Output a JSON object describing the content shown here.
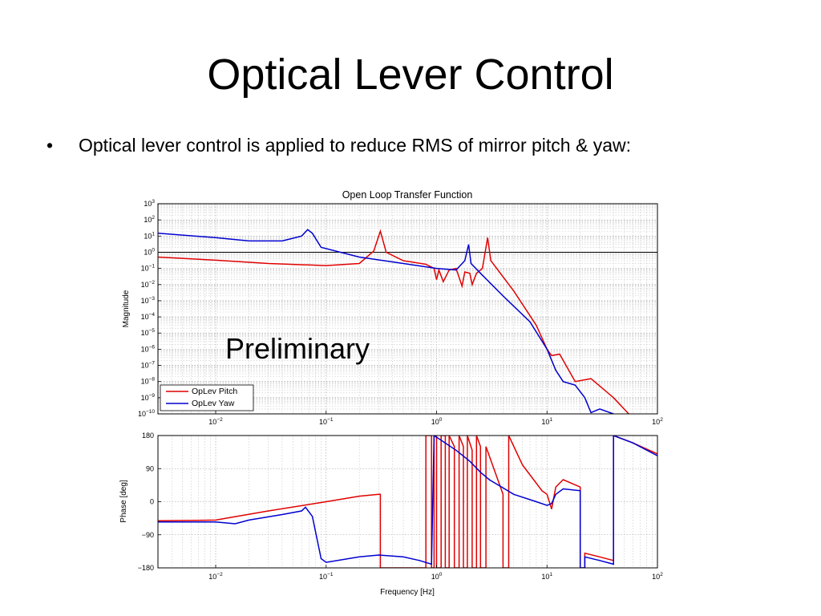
{
  "slide": {
    "title": "Optical Lever Control",
    "bullet": "Optical lever control is applied to reduce RMS of mirror pitch & yaw:",
    "watermark": "Preliminary"
  },
  "chart_data": [
    {
      "type": "line",
      "title": "Open Loop Transfer Function",
      "xlabel": "",
      "ylabel": "Magnitude",
      "xscale": "log",
      "yscale": "log",
      "xlim": [
        0.003,
        100
      ],
      "ylim": [
        1e-10,
        1000
      ],
      "grid": true,
      "legend_position": "bottom-left",
      "x_ticks": [
        {
          "v": 0.01,
          "b": "10",
          "e": "−2"
        },
        {
          "v": 0.1,
          "b": "10",
          "e": "−1"
        },
        {
          "v": 1,
          "b": "10",
          "e": "0"
        },
        {
          "v": 10,
          "b": "10",
          "e": "1"
        },
        {
          "v": 100,
          "b": "10",
          "e": "2"
        }
      ],
      "y_ticks": [
        {
          "v": 1000,
          "b": "10",
          "e": "3"
        },
        {
          "v": 100,
          "b": "10",
          "e": "2"
        },
        {
          "v": 10,
          "b": "10",
          "e": "1"
        },
        {
          "v": 1,
          "b": "10",
          "e": "0"
        },
        {
          "v": 0.1,
          "b": "10",
          "e": "−1"
        },
        {
          "v": 0.01,
          "b": "10",
          "e": "−2"
        },
        {
          "v": 0.001,
          "b": "10",
          "e": "−3"
        },
        {
          "v": 0.0001,
          "b": "10",
          "e": "−4"
        },
        {
          "v": 1e-05,
          "b": "10",
          "e": "−5"
        },
        {
          "v": 1e-06,
          "b": "10",
          "e": "−6"
        },
        {
          "v": 1e-07,
          "b": "10",
          "e": "−7"
        },
        {
          "v": 1e-08,
          "b": "10",
          "e": "−8"
        },
        {
          "v": 1e-09,
          "b": "10",
          "e": "−9"
        },
        {
          "v": 1e-10,
          "b": "10",
          "e": "−10"
        }
      ],
      "reference_line": 1,
      "series": [
        {
          "name": "OpLev Pitch",
          "color": "#e00000",
          "points": [
            [
              0.003,
              0.5
            ],
            [
              0.01,
              0.32
            ],
            [
              0.03,
              0.2
            ],
            [
              0.1,
              0.15
            ],
            [
              0.2,
              0.2
            ],
            [
              0.27,
              1.2
            ],
            [
              0.31,
              20
            ],
            [
              0.35,
              1.0
            ],
            [
              0.5,
              0.3
            ],
            [
              0.8,
              0.18
            ],
            [
              0.95,
              0.1
            ],
            [
              1.0,
              0.02
            ],
            [
              1.05,
              0.08
            ],
            [
              1.15,
              0.015
            ],
            [
              1.3,
              0.08
            ],
            [
              1.5,
              0.1
            ],
            [
              1.7,
              0.008
            ],
            [
              1.8,
              0.06
            ],
            [
              2.0,
              0.05
            ],
            [
              2.1,
              0.01
            ],
            [
              2.3,
              0.05
            ],
            [
              2.6,
              0.1
            ],
            [
              2.9,
              8
            ],
            [
              3.1,
              0.3
            ],
            [
              5,
              0.004
            ],
            [
              8,
              3e-05
            ],
            [
              10,
              1e-06
            ],
            [
              11,
              4e-07
            ],
            [
              13,
              5e-07
            ],
            [
              18,
              1e-08
            ],
            [
              25,
              1.5e-08
            ],
            [
              40,
              1e-09
            ],
            [
              55,
              1e-10
            ]
          ]
        },
        {
          "name": "OpLev Yaw",
          "color": "#0000d0",
          "points": [
            [
              0.003,
              15
            ],
            [
              0.01,
              8
            ],
            [
              0.02,
              5
            ],
            [
              0.04,
              5
            ],
            [
              0.06,
              10
            ],
            [
              0.068,
              25
            ],
            [
              0.075,
              15
            ],
            [
              0.09,
              2
            ],
            [
              0.2,
              0.5
            ],
            [
              0.5,
              0.2
            ],
            [
              1.0,
              0.1
            ],
            [
              1.5,
              0.08
            ],
            [
              1.8,
              0.3
            ],
            [
              1.95,
              3
            ],
            [
              2.05,
              0.2
            ],
            [
              2.5,
              0.05
            ],
            [
              4,
              0.002
            ],
            [
              7,
              5e-05
            ],
            [
              10,
              1e-06
            ],
            [
              12,
              5e-08
            ],
            [
              14,
              1e-08
            ],
            [
              18,
              6e-09
            ],
            [
              22,
              1e-09
            ],
            [
              25,
              1.2e-10
            ],
            [
              30,
              2e-10
            ],
            [
              40,
              1e-10
            ]
          ]
        }
      ]
    },
    {
      "type": "line",
      "title": "",
      "xlabel": "Frequency [Hz]",
      "ylabel": "Phase [deg]",
      "xscale": "log",
      "xlim": [
        0.003,
        100
      ],
      "ylim": [
        -180,
        180
      ],
      "grid": true,
      "x_ticks": [
        {
          "v": 0.01,
          "b": "10",
          "e": "−2"
        },
        {
          "v": 0.1,
          "b": "10",
          "e": "−1"
        },
        {
          "v": 1,
          "b": "10",
          "e": "0"
        },
        {
          "v": 10,
          "b": "10",
          "e": "1"
        },
        {
          "v": 100,
          "b": "10",
          "e": "2"
        }
      ],
      "y_ticks": [
        {
          "v": 180,
          "t": "180"
        },
        {
          "v": 90,
          "t": "90"
        },
        {
          "v": 0,
          "t": "0"
        },
        {
          "v": -90,
          "t": "−90"
        },
        {
          "v": -180,
          "t": "−180"
        }
      ],
      "series": [
        {
          "name": "OpLev Pitch",
          "color": "#e00000",
          "points": [
            [
              0.003,
              -52
            ],
            [
              0.01,
              -50
            ],
            [
              0.03,
              -25
            ],
            [
              0.1,
              0
            ],
            [
              0.2,
              15
            ],
            [
              0.3,
              20
            ],
            [
              0.31,
              20
            ],
            [
              0.31,
              -180
            ],
            [
              0.8,
              -180
            ],
            [
              0.8,
              180
            ],
            [
              0.9,
              180
            ],
            [
              0.9,
              -180
            ],
            [
              0.95,
              -180
            ],
            [
              0.95,
              180
            ],
            [
              1.0,
              180
            ],
            [
              1.0,
              -180
            ],
            [
              1.1,
              -180
            ],
            [
              1.1,
              180
            ],
            [
              1.2,
              180
            ],
            [
              1.2,
              -180
            ],
            [
              1.3,
              -180
            ],
            [
              1.3,
              180
            ],
            [
              1.45,
              150
            ],
            [
              1.45,
              -180
            ],
            [
              1.6,
              -180
            ],
            [
              1.6,
              180
            ],
            [
              1.75,
              150
            ],
            [
              1.75,
              -180
            ],
            [
              1.9,
              -180
            ],
            [
              1.9,
              180
            ],
            [
              2.1,
              140
            ],
            [
              2.1,
              -180
            ],
            [
              2.3,
              -180
            ],
            [
              2.3,
              180
            ],
            [
              2.5,
              150
            ],
            [
              2.5,
              -180
            ],
            [
              2.8,
              -180
            ],
            [
              2.8,
              150
            ],
            [
              4,
              20
            ],
            [
              4,
              -180
            ],
            [
              4.5,
              -180
            ],
            [
              4.5,
              180
            ],
            [
              6,
              100
            ],
            [
              9,
              30
            ],
            [
              10,
              20
            ],
            [
              11,
              -20
            ],
            [
              12,
              40
            ],
            [
              14,
              60
            ],
            [
              20,
              40
            ],
            [
              20,
              -180
            ],
            [
              22,
              -180
            ],
            [
              22,
              -140
            ],
            [
              30,
              -150
            ],
            [
              40,
              -160
            ],
            [
              40,
              180
            ],
            [
              60,
              160
            ],
            [
              100,
              130
            ]
          ]
        },
        {
          "name": "OpLev Yaw",
          "color": "#0000d0",
          "points": [
            [
              0.003,
              -55
            ],
            [
              0.01,
              -55
            ],
            [
              0.015,
              -60
            ],
            [
              0.02,
              -50
            ],
            [
              0.04,
              -35
            ],
            [
              0.06,
              -25
            ],
            [
              0.065,
              -15
            ],
            [
              0.075,
              -40
            ],
            [
              0.09,
              -155
            ],
            [
              0.1,
              -165
            ],
            [
              0.2,
              -150
            ],
            [
              0.3,
              -145
            ],
            [
              0.5,
              -150
            ],
            [
              0.7,
              -160
            ],
            [
              0.9,
              -170
            ],
            [
              0.95,
              180
            ],
            [
              1.5,
              140
            ],
            [
              2.0,
              110
            ],
            [
              2.5,
              80
            ],
            [
              3,
              60
            ],
            [
              5,
              20
            ],
            [
              8,
              0
            ],
            [
              10,
              -10
            ],
            [
              11,
              -5
            ],
            [
              12,
              20
            ],
            [
              14,
              35
            ],
            [
              20,
              30
            ],
            [
              20,
              -180
            ],
            [
              22,
              -180
            ],
            [
              22,
              -150
            ],
            [
              30,
              -160
            ],
            [
              40,
              -170
            ],
            [
              40,
              180
            ],
            [
              60,
              160
            ],
            [
              100,
              125
            ]
          ]
        }
      ]
    }
  ]
}
